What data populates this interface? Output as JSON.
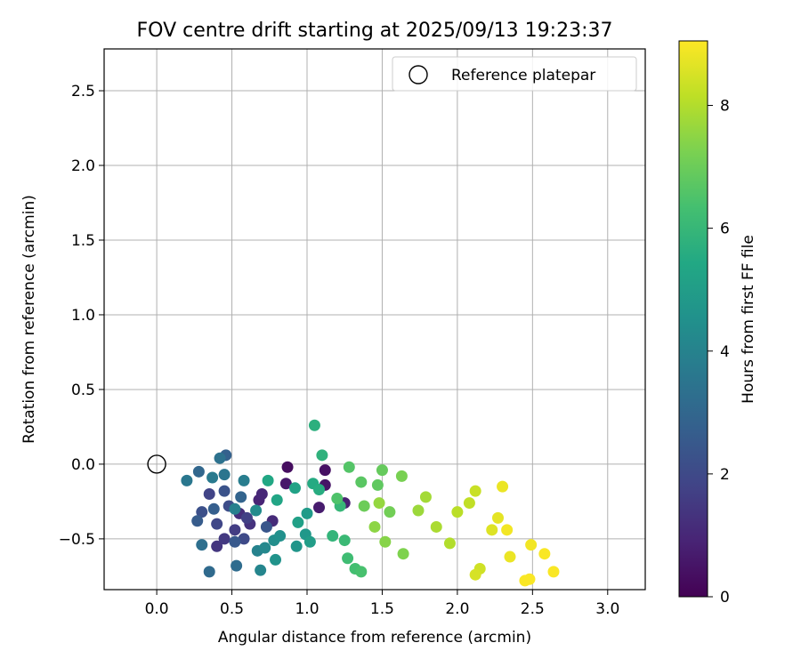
{
  "chart_data": {
    "type": "scatter",
    "title": "FOV centre drift starting at 2025/09/13 19:23:37",
    "xlabel": "Angular distance from reference (arcmin)",
    "ylabel": "Rotation from reference (arcmin)",
    "xlim": [
      -0.35,
      3.25
    ],
    "ylim": [
      -0.84,
      2.78
    ],
    "xticks": [
      "0.0",
      "0.5",
      "1.0",
      "1.5",
      "2.0",
      "2.5",
      "3.0"
    ],
    "yticks": [
      "−0.5",
      "0.0",
      "0.5",
      "1.0",
      "1.5",
      "2.0",
      "2.5"
    ],
    "grid": true,
    "legend": {
      "placement": "top-right",
      "entries": [
        "Reference platepar"
      ]
    },
    "reference_point": {
      "x": 0.0,
      "y": 0.0,
      "label": "Reference platepar"
    },
    "colorbar": {
      "label": "Hours from first FF file",
      "colormap": "viridis",
      "range": [
        0,
        9.05
      ],
      "ticks": [
        "0",
        "2",
        "4",
        "6",
        "8"
      ]
    },
    "points": [
      {
        "x": 0.87,
        "y": -0.02,
        "h": 0.3
      },
      {
        "x": 1.12,
        "y": -0.04,
        "h": 0.4
      },
      {
        "x": 1.12,
        "y": -0.14,
        "h": 0.5
      },
      {
        "x": 0.86,
        "y": -0.13,
        "h": 0.6
      },
      {
        "x": 1.08,
        "y": -0.29,
        "h": 0.7
      },
      {
        "x": 1.25,
        "y": -0.26,
        "h": 0.8
      },
      {
        "x": 0.68,
        "y": -0.24,
        "h": 0.9
      },
      {
        "x": 0.7,
        "y": -0.2,
        "h": 1.0
      },
      {
        "x": 0.77,
        "y": -0.38,
        "h": 1.1
      },
      {
        "x": 0.55,
        "y": -0.33,
        "h": 1.2
      },
      {
        "x": 0.62,
        "y": -0.4,
        "h": 1.3
      },
      {
        "x": 0.4,
        "y": -0.55,
        "h": 1.4
      },
      {
        "x": 0.45,
        "y": -0.5,
        "h": 1.5
      },
      {
        "x": 0.52,
        "y": -0.44,
        "h": 1.6
      },
      {
        "x": 0.6,
        "y": -0.36,
        "h": 1.7
      },
      {
        "x": 0.35,
        "y": -0.2,
        "h": 1.8
      },
      {
        "x": 0.4,
        "y": -0.4,
        "h": 1.9
      },
      {
        "x": 0.58,
        "y": -0.5,
        "h": 2.0
      },
      {
        "x": 0.48,
        "y": -0.28,
        "h": 2.1
      },
      {
        "x": 0.3,
        "y": -0.32,
        "h": 2.2
      },
      {
        "x": 0.45,
        "y": -0.18,
        "h": 2.3
      },
      {
        "x": 0.73,
        "y": -0.42,
        "h": 2.4
      },
      {
        "x": 0.52,
        "y": -0.52,
        "h": 2.5
      },
      {
        "x": 0.27,
        "y": -0.38,
        "h": 2.6
      },
      {
        "x": 0.38,
        "y": -0.3,
        "h": 2.7
      },
      {
        "x": 0.46,
        "y": 0.06,
        "h": 2.8
      },
      {
        "x": 0.56,
        "y": -0.22,
        "h": 2.9
      },
      {
        "x": 0.28,
        "y": -0.05,
        "h": 3.0
      },
      {
        "x": 0.35,
        "y": -0.72,
        "h": 3.1
      },
      {
        "x": 0.53,
        "y": -0.68,
        "h": 3.2
      },
      {
        "x": 0.3,
        "y": -0.54,
        "h": 3.3
      },
      {
        "x": 0.42,
        "y": 0.04,
        "h": 3.4
      },
      {
        "x": 0.45,
        "y": -0.07,
        "h": 3.5
      },
      {
        "x": 0.2,
        "y": -0.11,
        "h": 3.6
      },
      {
        "x": 0.37,
        "y": -0.09,
        "h": 3.7
      },
      {
        "x": 0.58,
        "y": -0.11,
        "h": 3.8
      },
      {
        "x": 0.52,
        "y": -0.3,
        "h": 3.9
      },
      {
        "x": 0.67,
        "y": -0.58,
        "h": 4.0
      },
      {
        "x": 0.69,
        "y": -0.71,
        "h": 4.1
      },
      {
        "x": 0.72,
        "y": -0.56,
        "h": 4.2
      },
      {
        "x": 0.66,
        "y": -0.31,
        "h": 4.3
      },
      {
        "x": 0.78,
        "y": -0.51,
        "h": 4.4
      },
      {
        "x": 0.82,
        "y": -0.48,
        "h": 4.5
      },
      {
        "x": 0.79,
        "y": -0.64,
        "h": 4.6
      },
      {
        "x": 0.93,
        "y": -0.55,
        "h": 4.7
      },
      {
        "x": 0.99,
        "y": -0.47,
        "h": 4.8
      },
      {
        "x": 1.0,
        "y": -0.33,
        "h": 4.9
      },
      {
        "x": 1.02,
        "y": -0.52,
        "h": 5.0
      },
      {
        "x": 0.94,
        "y": -0.39,
        "h": 5.1
      },
      {
        "x": 0.92,
        "y": -0.16,
        "h": 5.2
      },
      {
        "x": 0.8,
        "y": -0.24,
        "h": 5.3
      },
      {
        "x": 0.74,
        "y": -0.11,
        "h": 5.4
      },
      {
        "x": 1.04,
        "y": -0.13,
        "h": 5.5
      },
      {
        "x": 1.08,
        "y": -0.17,
        "h": 5.6
      },
      {
        "x": 1.05,
        "y": 0.26,
        "h": 5.7
      },
      {
        "x": 1.1,
        "y": 0.06,
        "h": 5.8
      },
      {
        "x": 1.17,
        "y": -0.48,
        "h": 5.9
      },
      {
        "x": 1.22,
        "y": -0.28,
        "h": 6.0
      },
      {
        "x": 1.25,
        "y": -0.51,
        "h": 6.1
      },
      {
        "x": 1.27,
        "y": -0.63,
        "h": 6.2
      },
      {
        "x": 1.32,
        "y": -0.7,
        "h": 6.3
      },
      {
        "x": 1.36,
        "y": -0.72,
        "h": 6.4
      },
      {
        "x": 1.2,
        "y": -0.23,
        "h": 6.5
      },
      {
        "x": 1.28,
        "y": -0.02,
        "h": 6.6
      },
      {
        "x": 1.36,
        "y": -0.12,
        "h": 6.7
      },
      {
        "x": 1.47,
        "y": -0.14,
        "h": 6.8
      },
      {
        "x": 1.5,
        "y": -0.04,
        "h": 6.9
      },
      {
        "x": 1.38,
        "y": -0.28,
        "h": 7.0
      },
      {
        "x": 1.55,
        "y": -0.32,
        "h": 7.1
      },
      {
        "x": 1.63,
        "y": -0.08,
        "h": 7.2
      },
      {
        "x": 1.64,
        "y": -0.6,
        "h": 7.3
      },
      {
        "x": 1.52,
        "y": -0.52,
        "h": 7.4
      },
      {
        "x": 1.45,
        "y": -0.42,
        "h": 7.5
      },
      {
        "x": 1.48,
        "y": -0.26,
        "h": 7.6
      },
      {
        "x": 1.74,
        "y": -0.31,
        "h": 7.7
      },
      {
        "x": 1.79,
        "y": -0.22,
        "h": 7.8
      },
      {
        "x": 1.86,
        "y": -0.42,
        "h": 7.9
      },
      {
        "x": 1.95,
        "y": -0.53,
        "h": 8.0
      },
      {
        "x": 2.0,
        "y": -0.32,
        "h": 8.1
      },
      {
        "x": 2.08,
        "y": -0.26,
        "h": 8.2
      },
      {
        "x": 2.12,
        "y": -0.18,
        "h": 8.3
      },
      {
        "x": 2.15,
        "y": -0.7,
        "h": 8.4
      },
      {
        "x": 2.12,
        "y": -0.74,
        "h": 8.5
      },
      {
        "x": 2.23,
        "y": -0.44,
        "h": 8.6
      },
      {
        "x": 2.27,
        "y": -0.36,
        "h": 8.7
      },
      {
        "x": 2.3,
        "y": -0.15,
        "h": 8.8
      },
      {
        "x": 2.33,
        "y": -0.44,
        "h": 8.9
      },
      {
        "x": 2.45,
        "y": -0.78,
        "h": 9.0
      },
      {
        "x": 2.48,
        "y": -0.77,
        "h": 9.0
      },
      {
        "x": 2.64,
        "y": -0.72,
        "h": 9.0
      },
      {
        "x": 2.58,
        "y": -0.6,
        "h": 9.0
      },
      {
        "x": 2.49,
        "y": -0.54,
        "h": 8.9
      },
      {
        "x": 2.35,
        "y": -0.62,
        "h": 8.8
      }
    ]
  }
}
